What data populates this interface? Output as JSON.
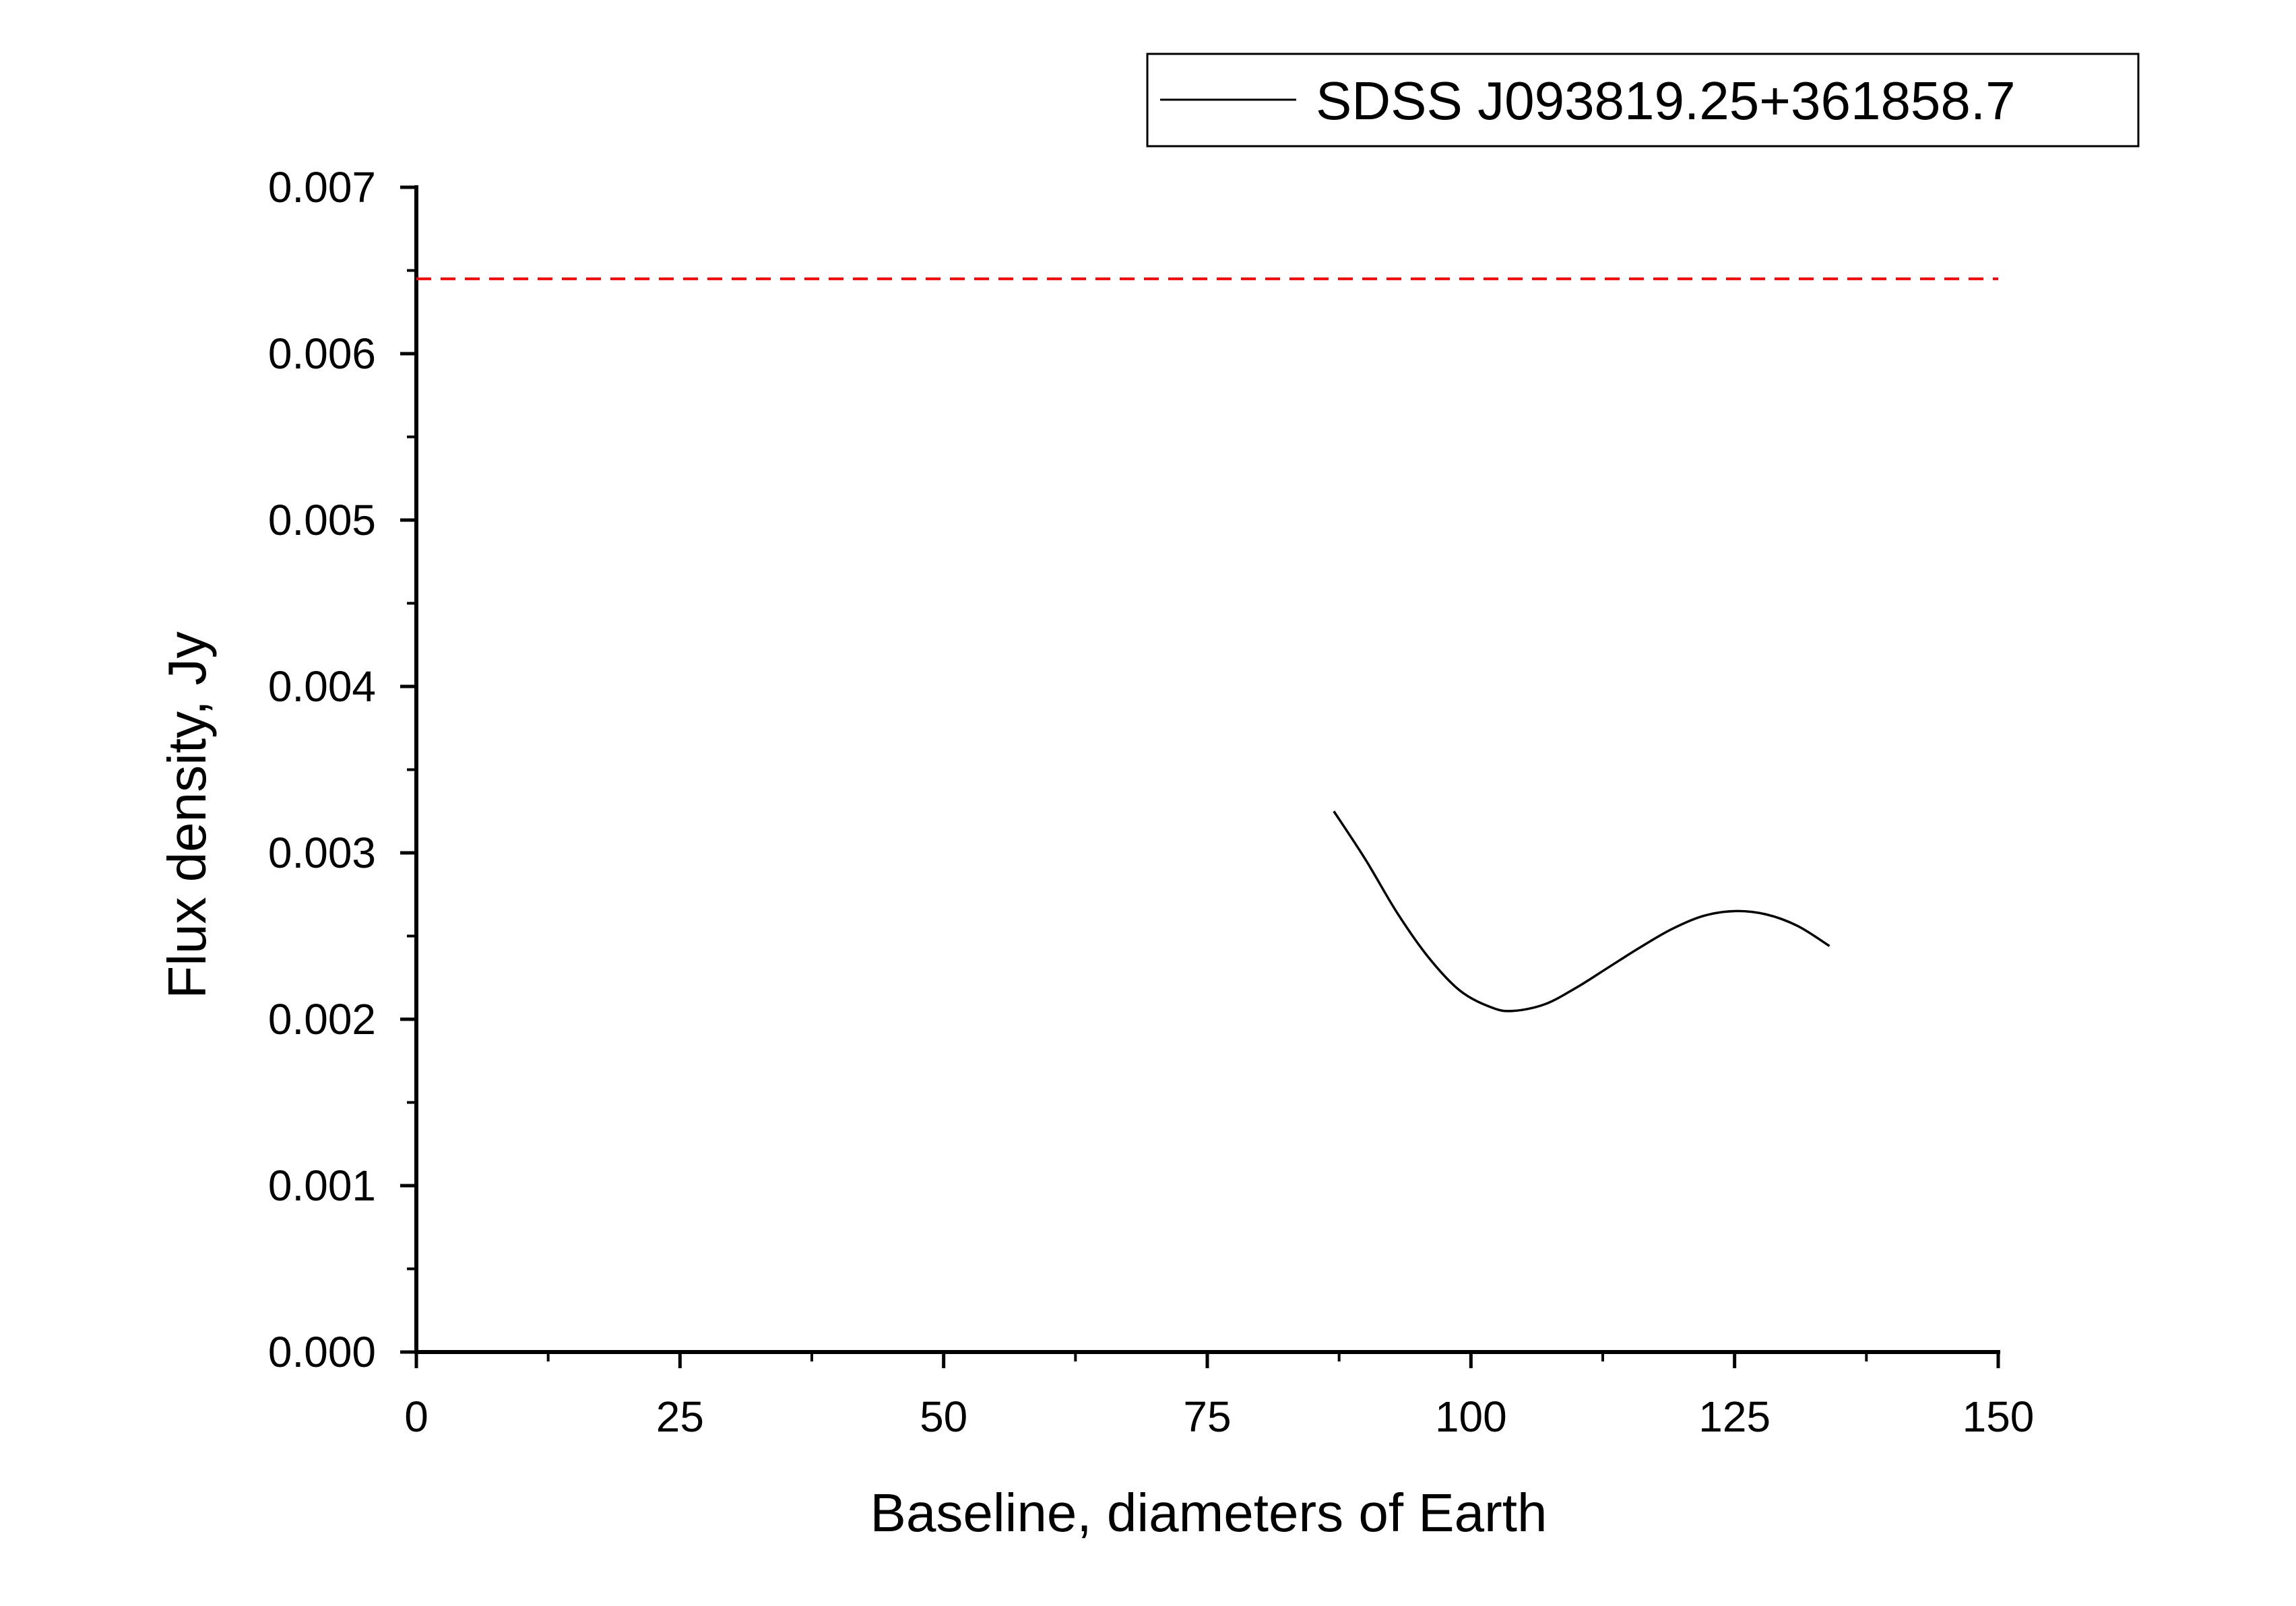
{
  "chart_data": {
    "type": "line",
    "title": "",
    "xlabel": "Baseline, diameters of Earth",
    "ylabel": "Flux density, Jy",
    "xlim": [
      0,
      150
    ],
    "ylim": [
      0.0,
      0.007
    ],
    "x_ticks": [
      "0",
      "25",
      "50",
      "75",
      "100",
      "125",
      "150"
    ],
    "y_ticks": [
      "0.000",
      "0.001",
      "0.002",
      "0.003",
      "0.004",
      "0.005",
      "0.006",
      "0.007"
    ],
    "grid": false,
    "legend_position": "top-right",
    "series": [
      {
        "name": "SDSS J093819.25+361858.7",
        "color": "#000000",
        "style": "solid",
        "x": [
          87,
          90,
          93,
          96,
          99,
          102,
          104,
          107,
          110,
          113,
          116,
          119,
          122,
          125,
          128,
          131,
          134
        ],
        "y": [
          0.00325,
          0.00296,
          0.00264,
          0.00237,
          0.00217,
          0.00207,
          0.00205,
          0.00209,
          0.00219,
          0.00231,
          0.00243,
          0.00254,
          0.00262,
          0.00265,
          0.00263,
          0.00256,
          0.00244
        ]
      }
    ],
    "reference_lines": [
      {
        "y": 0.00645,
        "color": "#ff0000",
        "style": "dashed"
      }
    ]
  }
}
